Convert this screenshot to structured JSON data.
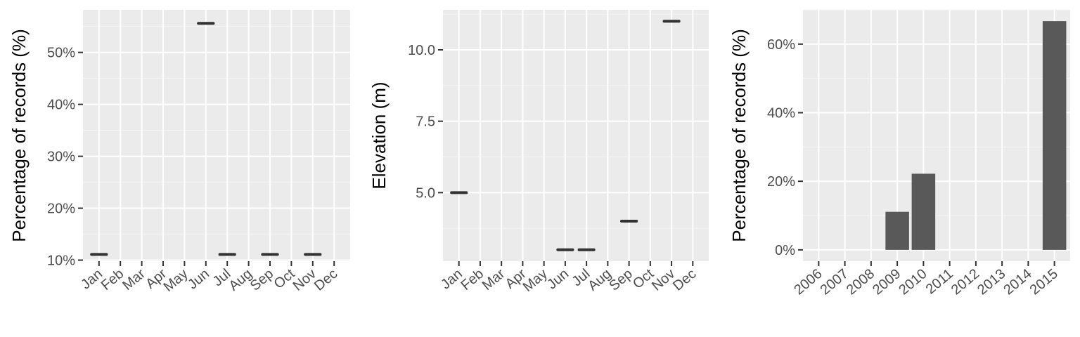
{
  "colors": {
    "panel_background": "#ebebeb",
    "grid_major": "#ffffff",
    "grid_minor": "#f5f5f5",
    "tick_mark": "#333333",
    "tick_label": "#4d4d4d",
    "crossbar": "#333333",
    "bar_fill": "#595959"
  },
  "chart_data": [
    {
      "type": "crossbar",
      "title": "",
      "xlabel": "",
      "ylabel": "Percentage of records (%)",
      "categories": [
        "Jan",
        "Feb",
        "Mar",
        "Apr",
        "May",
        "Jun",
        "Jul",
        "Aug",
        "Sep",
        "Oct",
        "Nov",
        "Dec"
      ],
      "values": [
        11.1,
        null,
        null,
        null,
        null,
        55.6,
        11.1,
        null,
        11.1,
        null,
        11.1,
        null
      ],
      "ylim": [
        9.8,
        58.2
      ],
      "yticks": [
        10,
        20,
        30,
        40,
        50
      ],
      "ytick_labels": [
        "10%",
        "20%",
        "30%",
        "40%",
        "50%"
      ],
      "grid": true,
      "legend": "none"
    },
    {
      "type": "crossbar",
      "title": "",
      "xlabel": "",
      "ylabel": "Elevation (m)",
      "categories": [
        "Jan",
        "Feb",
        "Mar",
        "Apr",
        "May",
        "Jun",
        "Jul",
        "Aug",
        "Sep",
        "Oct",
        "Nov",
        "Dec"
      ],
      "values": [
        5,
        null,
        null,
        null,
        null,
        3,
        3,
        null,
        4,
        null,
        11,
        null
      ],
      "ylim": [
        2.6,
        11.4
      ],
      "yticks": [
        5.0,
        7.5,
        10.0
      ],
      "ytick_labels": [
        "5.0",
        "7.5",
        "10.0"
      ],
      "grid": true,
      "legend": "none"
    },
    {
      "type": "bar",
      "title": "",
      "xlabel": "",
      "ylabel": "Percentage of records (%)",
      "categories": [
        "2006",
        "2007",
        "2008",
        "2009",
        "2010",
        "2011",
        "2012",
        "2013",
        "2014",
        "2015"
      ],
      "values": [
        0,
        0,
        0,
        11.1,
        22.2,
        0,
        0,
        0,
        0,
        66.7
      ],
      "ylim": [
        -3.3,
        70
      ],
      "yticks": [
        0,
        20,
        40,
        60
      ],
      "ytick_labels": [
        "0%",
        "20%",
        "40%",
        "60%"
      ],
      "grid": true,
      "legend": "none"
    }
  ]
}
